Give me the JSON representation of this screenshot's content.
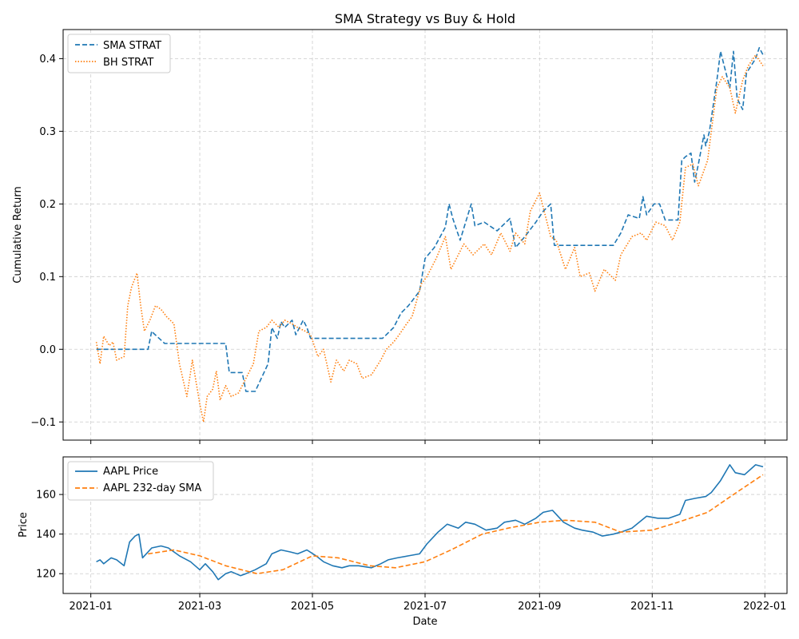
{
  "chart_data": [
    {
      "type": "line",
      "title": "SMA Strategy vs Buy & Hold",
      "xlabel": "",
      "ylabel": "Cumulative Return",
      "ylim": [
        -0.125,
        0.44
      ],
      "yticks": [
        -0.1,
        0.0,
        0.1,
        0.2,
        0.3,
        0.4
      ],
      "ytick_labels": [
        "−0.1",
        "0.0",
        "0.1",
        "0.2",
        "0.3",
        "0.4"
      ],
      "xlim": [
        "2020-12-17",
        "2022-01-13"
      ],
      "grid": true,
      "legend_position": "top-left",
      "series": [
        {
          "name": "SMA STRAT",
          "color": "#1f77b4",
          "style": "dashed",
          "x": [
            "2021-01-04",
            "2021-01-20",
            "2021-02-01",
            "2021-02-03",
            "2021-02-04",
            "2021-02-10",
            "2021-02-12",
            "2021-03-15",
            "2021-03-17",
            "2021-03-24",
            "2021-03-26",
            "2021-03-31",
            "2021-04-07",
            "2021-04-09",
            "2021-04-12",
            "2021-04-14",
            "2021-04-16",
            "2021-04-20",
            "2021-04-22",
            "2021-04-26",
            "2021-04-28",
            "2021-04-30",
            "2021-06-08",
            "2021-06-10",
            "2021-06-14",
            "2021-06-18",
            "2021-06-22",
            "2021-06-28",
            "2021-07-01",
            "2021-07-06",
            "2021-07-12",
            "2021-07-14",
            "2021-07-16",
            "2021-07-20",
            "2021-07-26",
            "2021-07-28",
            "2021-08-02",
            "2021-08-09",
            "2021-08-16",
            "2021-08-19",
            "2021-08-24",
            "2021-08-30",
            "2021-09-03",
            "2021-09-07",
            "2021-09-09",
            "2021-10-11",
            "2021-10-15",
            "2021-10-19",
            "2021-10-25",
            "2021-10-27",
            "2021-10-29",
            "2021-11-02",
            "2021-11-05",
            "2021-11-08",
            "2021-11-11",
            "2021-11-15",
            "2021-11-17",
            "2021-11-19",
            "2021-11-22",
            "2021-11-24",
            "2021-11-26",
            "2021-11-29",
            "2021-11-30",
            "2021-12-02",
            "2021-12-06",
            "2021-12-08",
            "2021-12-10",
            "2021-12-13",
            "2021-12-15",
            "2021-12-17",
            "2021-12-20",
            "2021-12-22",
            "2021-12-27",
            "2021-12-29",
            "2021-12-31"
          ],
          "y": [
            0.0,
            0.0,
            0.0,
            0.025,
            0.022,
            0.008,
            0.008,
            0.008,
            -0.032,
            -0.032,
            -0.058,
            -0.058,
            -0.02,
            0.03,
            0.015,
            0.038,
            0.03,
            0.04,
            0.02,
            0.04,
            0.03,
            0.015,
            0.015,
            0.02,
            0.03,
            0.05,
            0.06,
            0.08,
            0.125,
            0.14,
            0.168,
            0.2,
            0.18,
            0.15,
            0.2,
            0.17,
            0.175,
            0.163,
            0.18,
            0.14,
            0.155,
            0.175,
            0.19,
            0.2,
            0.143,
            0.143,
            0.16,
            0.185,
            0.18,
            0.21,
            0.185,
            0.2,
            0.2,
            0.178,
            0.178,
            0.178,
            0.26,
            0.265,
            0.27,
            0.23,
            0.255,
            0.295,
            0.28,
            0.3,
            0.37,
            0.41,
            0.39,
            0.36,
            0.41,
            0.345,
            0.33,
            0.38,
            0.4,
            0.415,
            0.405
          ]
        },
        {
          "name": "BH STRAT",
          "color": "#ff7f0e",
          "style": "dotted",
          "x": [
            "2021-01-04",
            "2021-01-06",
            "2021-01-08",
            "2021-01-11",
            "2021-01-13",
            "2021-01-15",
            "2021-01-19",
            "2021-01-21",
            "2021-01-23",
            "2021-01-26",
            "2021-01-28",
            "2021-01-30",
            "2021-02-02",
            "2021-02-05",
            "2021-02-08",
            "2021-02-11",
            "2021-02-15",
            "2021-02-18",
            "2021-02-22",
            "2021-02-25",
            "2021-03-01",
            "2021-03-03",
            "2021-03-05",
            "2021-03-08",
            "2021-03-10",
            "2021-03-12",
            "2021-03-15",
            "2021-03-18",
            "2021-03-22",
            "2021-03-25",
            "2021-03-30",
            "2021-04-02",
            "2021-04-06",
            "2021-04-09",
            "2021-04-13",
            "2021-04-16",
            "2021-04-20",
            "2021-04-23",
            "2021-04-27",
            "2021-04-30",
            "2021-05-04",
            "2021-05-07",
            "2021-05-11",
            "2021-05-14",
            "2021-05-18",
            "2021-05-21",
            "2021-05-25",
            "2021-05-28",
            "2021-06-02",
            "2021-06-07",
            "2021-06-10",
            "2021-06-14",
            "2021-06-17",
            "2021-06-21",
            "2021-06-24",
            "2021-06-29",
            "2021-07-02",
            "2021-07-07",
            "2021-07-12",
            "2021-07-15",
            "2021-07-19",
            "2021-07-22",
            "2021-07-27",
            "2021-08-02",
            "2021-08-06",
            "2021-08-11",
            "2021-08-16",
            "2021-08-19",
            "2021-08-24",
            "2021-08-27",
            "2021-09-01",
            "2021-09-07",
            "2021-09-10",
            "2021-09-15",
            "2021-09-20",
            "2021-09-23",
            "2021-09-28",
            "2021-10-01",
            "2021-10-06",
            "2021-10-12",
            "2021-10-15",
            "2021-10-21",
            "2021-10-26",
            "2021-10-29",
            "2021-11-03",
            "2021-11-08",
            "2021-11-12",
            "2021-11-16",
            "2021-11-19",
            "2021-11-23",
            "2021-11-26",
            "2021-12-01",
            "2021-12-06",
            "2021-12-09",
            "2021-12-13",
            "2021-12-16",
            "2021-12-20",
            "2021-12-23",
            "2021-12-27",
            "2021-12-31"
          ],
          "y": [
            0.01,
            -0.02,
            0.018,
            0.005,
            0.01,
            -0.015,
            -0.01,
            0.06,
            0.085,
            0.105,
            0.06,
            0.025,
            0.04,
            0.06,
            0.055,
            0.045,
            0.035,
            -0.02,
            -0.065,
            -0.015,
            -0.075,
            -0.1,
            -0.065,
            -0.055,
            -0.03,
            -0.07,
            -0.05,
            -0.065,
            -0.06,
            -0.045,
            -0.02,
            0.025,
            0.03,
            0.04,
            0.03,
            0.04,
            0.035,
            0.03,
            0.025,
            0.02,
            -0.01,
            0.0,
            -0.045,
            -0.015,
            -0.03,
            -0.015,
            -0.02,
            -0.04,
            -0.035,
            -0.015,
            0.0,
            0.01,
            0.02,
            0.035,
            0.045,
            0.09,
            0.1,
            0.125,
            0.155,
            0.11,
            0.13,
            0.145,
            0.13,
            0.145,
            0.13,
            0.16,
            0.135,
            0.16,
            0.145,
            0.19,
            0.215,
            0.155,
            0.15,
            0.11,
            0.14,
            0.1,
            0.105,
            0.08,
            0.11,
            0.095,
            0.13,
            0.155,
            0.16,
            0.15,
            0.175,
            0.17,
            0.15,
            0.175,
            0.25,
            0.255,
            0.225,
            0.26,
            0.36,
            0.375,
            0.36,
            0.325,
            0.37,
            0.39,
            0.405,
            0.39
          ]
        }
      ]
    },
    {
      "type": "line",
      "title": "",
      "xlabel": "Date",
      "ylabel": "Price",
      "ylim": [
        110,
        179
      ],
      "yticks": [
        120,
        140,
        160
      ],
      "ytick_labels": [
        "120",
        "140",
        "160"
      ],
      "xlim": [
        "2020-12-17",
        "2022-01-13"
      ],
      "xticks": [
        "2021-01-01",
        "2021-03-01",
        "2021-05-01",
        "2021-07-01",
        "2021-09-01",
        "2021-11-01",
        "2022-01-01"
      ],
      "xtick_labels": [
        "2021-01",
        "2021-03",
        "2021-05",
        "2021-07",
        "2021-09",
        "2021-11",
        "2022-01"
      ],
      "grid": true,
      "legend_position": "top-left",
      "series": [
        {
          "name": "AAPL Price",
          "color": "#1f77b4",
          "style": "solid",
          "x": [
            "2021-01-04",
            "2021-01-06",
            "2021-01-08",
            "2021-01-12",
            "2021-01-15",
            "2021-01-19",
            "2021-01-22",
            "2021-01-25",
            "2021-01-27",
            "2021-01-29",
            "2021-02-03",
            "2021-02-08",
            "2021-02-12",
            "2021-02-18",
            "2021-02-24",
            "2021-03-01",
            "2021-03-04",
            "2021-03-08",
            "2021-03-11",
            "2021-03-15",
            "2021-03-18",
            "2021-03-23",
            "2021-03-26",
            "2021-03-31",
            "2021-04-06",
            "2021-04-09",
            "2021-04-14",
            "2021-04-19",
            "2021-04-23",
            "2021-04-28",
            "2021-05-03",
            "2021-05-07",
            "2021-05-12",
            "2021-05-17",
            "2021-05-21",
            "2021-05-26",
            "2021-06-02",
            "2021-06-07",
            "2021-06-11",
            "2021-06-16",
            "2021-06-22",
            "2021-06-28",
            "2021-07-02",
            "2021-07-08",
            "2021-07-13",
            "2021-07-19",
            "2021-07-23",
            "2021-07-28",
            "2021-08-03",
            "2021-08-09",
            "2021-08-13",
            "2021-08-19",
            "2021-08-24",
            "2021-08-30",
            "2021-09-03",
            "2021-09-08",
            "2021-09-14",
            "2021-09-20",
            "2021-09-24",
            "2021-09-30",
            "2021-10-05",
            "2021-10-11",
            "2021-10-15",
            "2021-10-21",
            "2021-10-25",
            "2021-10-29",
            "2021-11-04",
            "2021-11-10",
            "2021-11-16",
            "2021-11-19",
            "2021-11-24",
            "2021-11-30",
            "2021-12-03",
            "2021-12-08",
            "2021-12-13",
            "2021-12-16",
            "2021-12-21",
            "2021-12-27",
            "2021-12-31"
          ],
          "y": [
            126,
            127,
            125,
            128,
            127,
            124,
            136,
            139,
            140,
            128,
            133,
            134,
            133,
            129,
            126,
            122,
            125,
            121,
            117,
            120,
            121,
            119,
            120,
            122,
            125,
            130,
            132,
            131,
            130,
            132,
            129,
            126,
            124,
            123,
            124,
            124,
            123,
            125,
            127,
            128,
            129,
            130,
            135,
            141,
            145,
            143,
            146,
            145,
            142,
            143,
            146,
            147,
            145,
            148,
            151,
            152,
            146,
            143,
            142,
            141,
            139,
            140,
            141,
            143,
            146,
            149,
            148,
            148,
            150,
            157,
            158,
            159,
            161,
            167,
            175,
            171,
            170,
            175,
            174
          ]
        },
        {
          "name": "AAPL 232-day SMA",
          "color": "#ff7f0e",
          "style": "dashed",
          "x": [
            "2021-02-01",
            "2021-02-15",
            "2021-03-01",
            "2021-03-15",
            "2021-04-01",
            "2021-04-15",
            "2021-05-01",
            "2021-05-15",
            "2021-06-01",
            "2021-06-15",
            "2021-07-01",
            "2021-07-15",
            "2021-08-01",
            "2021-08-15",
            "2021-09-01",
            "2021-09-15",
            "2021-10-01",
            "2021-10-15",
            "2021-11-01",
            "2021-11-15",
            "2021-12-01",
            "2021-12-15",
            "2021-12-31"
          ],
          "y": [
            130,
            132,
            129,
            124,
            120,
            122,
            129,
            128,
            124,
            123,
            126,
            132,
            140,
            143,
            146,
            147,
            146,
            141,
            142,
            146,
            151,
            160,
            170
          ]
        }
      ]
    }
  ]
}
